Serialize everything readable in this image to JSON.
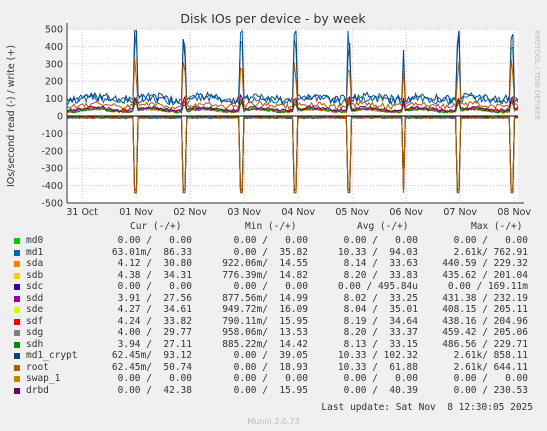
{
  "chart_data": {
    "type": "line",
    "title": "Disk IOs per device - by week",
    "ylabel": "IOs/second read (-) / write (+)",
    "ylim": [
      -500,
      500
    ],
    "yticks": [
      -500,
      -400,
      -300,
      -200,
      -100,
      0,
      100,
      200,
      300,
      400,
      500
    ],
    "xticks": [
      "31 Oct",
      "01 Nov",
      "02 Nov",
      "03 Nov",
      "04 Nov",
      "05 Nov",
      "06 Nov",
      "07 Nov",
      "08 Nov"
    ],
    "grid": true,
    "side_text": "RRDTOOL / TOBI OETIKER",
    "series": [
      {
        "name": "md0",
        "color": "#00cc00",
        "read_avg": 0,
        "write_avg": 0
      },
      {
        "name": "md1",
        "color": "#0066b3",
        "read_avg": 10.33,
        "write_avg": 94.03,
        "write_max": 762.91
      },
      {
        "name": "sda",
        "color": "#ff8000",
        "read_avg": 8.14,
        "write_avg": 33.63,
        "write_max": 229.32
      },
      {
        "name": "sdb",
        "color": "#ffcc00",
        "read_avg": 8.2,
        "write_avg": 33.83
      },
      {
        "name": "sdc",
        "color": "#330099",
        "read_avg": 0,
        "write_avg": 0
      },
      {
        "name": "sdd",
        "color": "#990099",
        "read_avg": 8.02,
        "write_avg": 33.25
      },
      {
        "name": "sde",
        "color": "#ccff00",
        "read_avg": 8.04,
        "write_avg": 35.01
      },
      {
        "name": "sdf",
        "color": "#ff0000",
        "read_avg": 8.19,
        "write_avg": 34.64
      },
      {
        "name": "sdg",
        "color": "#808080",
        "read_avg": 8.2,
        "write_avg": 33.37
      },
      {
        "name": "sdh",
        "color": "#008f00",
        "read_avg": 8.13,
        "write_avg": 33.15
      },
      {
        "name": "md1_crypt",
        "color": "#00487d",
        "read_avg": 10.33,
        "write_avg": 102.32
      },
      {
        "name": "root",
        "color": "#b35a00",
        "read_avg": 10.33,
        "write_avg": 61.88
      },
      {
        "name": "swap_1",
        "color": "#b38f00",
        "read_avg": 0,
        "write_avg": 0
      },
      {
        "name": "drbd",
        "color": "#6b006b",
        "read_avg": 0,
        "write_avg": 40.39
      }
    ]
  },
  "legend": {
    "headers": {
      "cur": "Cur (-/+)",
      "min": "Min (-/+)",
      "avg": "Avg (-/+)",
      "max": "Max (-/+)"
    },
    "rows": [
      {
        "name": "md0",
        "color": "#00cc00",
        "cur": "0.00 /   0.00",
        "min": "0.00 /   0.00",
        "avg": "0.00 /   0.00",
        "max": "0.00 /   0.00"
      },
      {
        "name": "md1",
        "color": "#0066b3",
        "cur": "63.01m/  86.33",
        "min": "0.00 /  35.82",
        "avg": "10.33 /  94.03",
        "max": "2.61k/ 762.91"
      },
      {
        "name": "sda",
        "color": "#ff8000",
        "cur": "4.12 /  30.80",
        "min": "922.06m/  14.55",
        "avg": "8.14 /  33.63",
        "max": "440.59 / 229.32"
      },
      {
        "name": "sdb",
        "color": "#ffcc00",
        "cur": "4.38 /  34.31",
        "min": "776.39m/  14.82",
        "avg": "8.20 /  33.83",
        "max": "435.62 / 201.04"
      },
      {
        "name": "sdc",
        "color": "#330099",
        "cur": "0.00 /   0.00",
        "min": "0.00 /   0.00",
        "avg": "0.00 / 495.84u",
        "max": "0.00 / 169.11m"
      },
      {
        "name": "sdd",
        "color": "#990099",
        "cur": "3.91 /  27.56",
        "min": "877.56m/  14.99",
        "avg": "8.02 /  33.25",
        "max": "431.38 / 232.19"
      },
      {
        "name": "sde",
        "color": "#ccff00",
        "cur": "4.27 /  34.61",
        "min": "949.72m/  16.09",
        "avg": "8.04 /  35.01",
        "max": "408.15 / 205.11"
      },
      {
        "name": "sdf",
        "color": "#ff0000",
        "cur": "4.24 /  33.82",
        "min": "790.11m/  15.95",
        "avg": "8.19 /  34.64",
        "max": "438.16 / 204.96"
      },
      {
        "name": "sdg",
        "color": "#808080",
        "cur": "4.00 /  29.77",
        "min": "958.06m/  13.53",
        "avg": "8.20 /  33.37",
        "max": "459.42 / 205.06"
      },
      {
        "name": "sdh",
        "color": "#008f00",
        "cur": "3.94 /  27.11",
        "min": "885.22m/  14.42",
        "avg": "8.13 /  33.15",
        "max": "486.56 / 229.71"
      },
      {
        "name": "md1_crypt",
        "color": "#00487d",
        "cur": "62.45m/  93.12",
        "min": "0.00 /  39.05",
        "avg": "10.33 / 102.32",
        "max": "2.61k/ 858.11"
      },
      {
        "name": "root",
        "color": "#b35a00",
        "cur": "62.45m/  50.74",
        "min": "0.00 /  18.93",
        "avg": "10.33 /  61.88",
        "max": "2.61k/ 644.11"
      },
      {
        "name": "swap_1",
        "color": "#b38f00",
        "cur": "0.00 /   0.00",
        "min": "0.00 /   0.00",
        "avg": "0.00 /   0.00",
        "max": "0.00 /   0.00"
      },
      {
        "name": "drbd",
        "color": "#6b006b",
        "cur": "0.00 /  42.38",
        "min": "0.00 /  15.95",
        "avg": "0.00 /  40.39",
        "max": "0.00 / 230.53"
      }
    ]
  },
  "last_update": "Last update: Sat Nov  8 12:30:05 2025",
  "munin_version": "Munin 2.0.73"
}
